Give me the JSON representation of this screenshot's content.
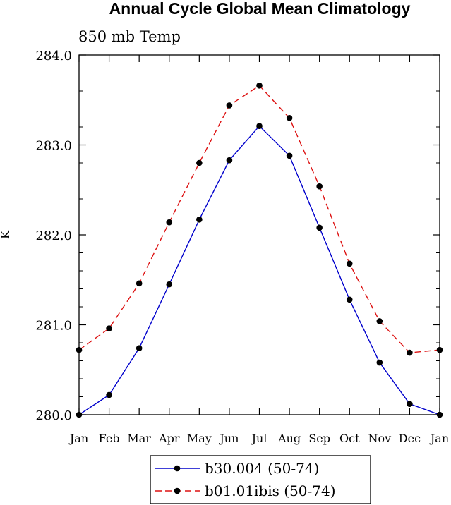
{
  "chart_data": {
    "type": "line",
    "title": "Annual Cycle Global Mean Climatology",
    "subtitle": "850 mb Temp",
    "ylabel": "K",
    "xlabel": "",
    "categories": [
      "Jan",
      "Feb",
      "Mar",
      "Apr",
      "May",
      "Jun",
      "Jul",
      "Aug",
      "Sep",
      "Oct",
      "Nov",
      "Dec",
      "Jan"
    ],
    "ylim": [
      280.0,
      284.0
    ],
    "yticks": [
      "280.0",
      "281.0",
      "282.0",
      "283.0",
      "284.0"
    ],
    "grid": false,
    "legend_position": "bottom-center",
    "series": [
      {
        "name": "b30.004 (50-74)",
        "color": "#0000cc",
        "line_style": "solid",
        "marker": "filled-circle",
        "values": [
          280.0,
          280.22,
          280.74,
          281.45,
          282.17,
          282.83,
          283.21,
          282.88,
          282.08,
          281.28,
          280.58,
          280.12,
          280.0
        ]
      },
      {
        "name": "b01.01ibis (50-74)",
        "color": "#dd1111",
        "line_style": "dashed",
        "marker": "filled-circle",
        "values": [
          280.72,
          280.96,
          281.46,
          282.14,
          282.8,
          283.44,
          283.66,
          283.3,
          282.54,
          281.68,
          281.04,
          280.69,
          280.72
        ]
      }
    ]
  }
}
